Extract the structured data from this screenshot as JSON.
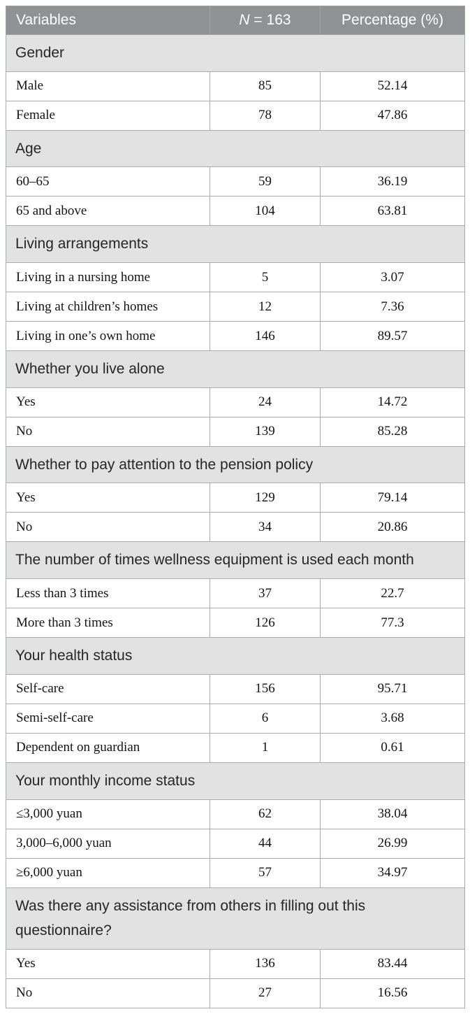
{
  "table": {
    "header": {
      "variables": "Variables",
      "n_symbol": "N",
      "n_rest": " = 163",
      "percentage": "Percentage (%)"
    },
    "sections": [
      {
        "title": "Gender",
        "rows": [
          {
            "label": "Male",
            "n": "85",
            "percentage": "52.14"
          },
          {
            "label": "Female",
            "n": "78",
            "percentage": "47.86"
          }
        ]
      },
      {
        "title": "Age",
        "rows": [
          {
            "label": "60–65",
            "n": "59",
            "percentage": "36.19"
          },
          {
            "label": "65 and above",
            "n": "104",
            "percentage": "63.81"
          }
        ]
      },
      {
        "title": "Living arrangements",
        "rows": [
          {
            "label": "Living in a nursing home",
            "n": "5",
            "percentage": "3.07"
          },
          {
            "label": "Living at children’s homes",
            "n": "12",
            "percentage": "7.36"
          },
          {
            "label": "Living in one’s own home",
            "n": "146",
            "percentage": "89.57"
          }
        ]
      },
      {
        "title": "Whether you live alone",
        "rows": [
          {
            "label": "Yes",
            "n": "24",
            "percentage": "14.72"
          },
          {
            "label": "No",
            "n": "139",
            "percentage": "85.28"
          }
        ]
      },
      {
        "title": "Whether to pay attention to the pension policy",
        "rows": [
          {
            "label": "Yes",
            "n": "129",
            "percentage": "79.14"
          },
          {
            "label": "No",
            "n": "34",
            "percentage": "20.86"
          }
        ]
      },
      {
        "title": "The number of times wellness equipment is used each month",
        "rows": [
          {
            "label": "Less than 3 times",
            "n": "37",
            "percentage": "22.7"
          },
          {
            "label": "More than 3 times",
            "n": "126",
            "percentage": "77.3"
          }
        ]
      },
      {
        "title": "Your health status",
        "rows": [
          {
            "label": "Self-care",
            "n": "156",
            "percentage": "95.71"
          },
          {
            "label": "Semi-self-care",
            "n": "6",
            "percentage": "3.68"
          },
          {
            "label": "Dependent on guardian",
            "n": "1",
            "percentage": "0.61"
          }
        ]
      },
      {
        "title": "Your monthly income status",
        "rows": [
          {
            "label": "≤3,000 yuan",
            "n": "62",
            "percentage": "38.04"
          },
          {
            "label": "3,000–6,000 yuan",
            "n": "44",
            "percentage": "26.99"
          },
          {
            "label": "≥6,000 yuan",
            "n": "57",
            "percentage": "34.97"
          }
        ]
      },
      {
        "title": "Was there any assistance from others in filling out this questionnaire?",
        "rows": [
          {
            "label": "Yes",
            "n": "136",
            "percentage": "83.44"
          },
          {
            "label": "No",
            "n": "27",
            "percentage": "16.56"
          }
        ]
      }
    ]
  },
  "colors": {
    "header_background": "#8e9295",
    "header_text": "#ffffff",
    "section_background": "#e1e3e3",
    "section_text": "#262626",
    "border": "#a9adad",
    "data_text": "#141414"
  }
}
